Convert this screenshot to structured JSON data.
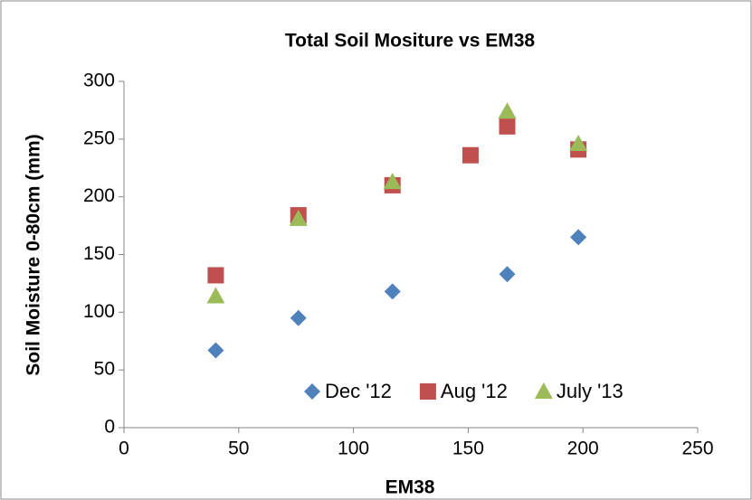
{
  "chart_data": {
    "type": "scatter",
    "title": "Total Soil Mositure vs EM38",
    "x_label": "EM38",
    "y_label": "Soil Moisture 0-80cm (mm)",
    "xlim": [
      0,
      250
    ],
    "xticks": [
      0,
      50,
      100,
      150,
      200,
      250
    ],
    "ylim": [
      0,
      300
    ],
    "yticks": [
      0,
      50,
      100,
      150,
      200,
      250,
      300
    ],
    "grid": false,
    "legend": "bottom-right",
    "series": [
      {
        "name": "Dec '12",
        "color": "#4f81bd",
        "marker": "diamond",
        "x": [
          40,
          76,
          117,
          167,
          198
        ],
        "values": [
          67,
          95,
          118,
          133,
          165
        ]
      },
      {
        "name": "Aug '12",
        "color": "#c0504d",
        "marker": "square",
        "x": [
          40,
          76,
          117,
          151,
          167,
          198
        ],
        "values": [
          132,
          184,
          210,
          236,
          261,
          241
        ]
      },
      {
        "name": "July '13",
        "color": "#9bbb59",
        "marker": "triangle",
        "x": [
          40,
          76,
          117,
          167,
          198
        ],
        "values": [
          114,
          181,
          213,
          274,
          246
        ]
      }
    ]
  }
}
